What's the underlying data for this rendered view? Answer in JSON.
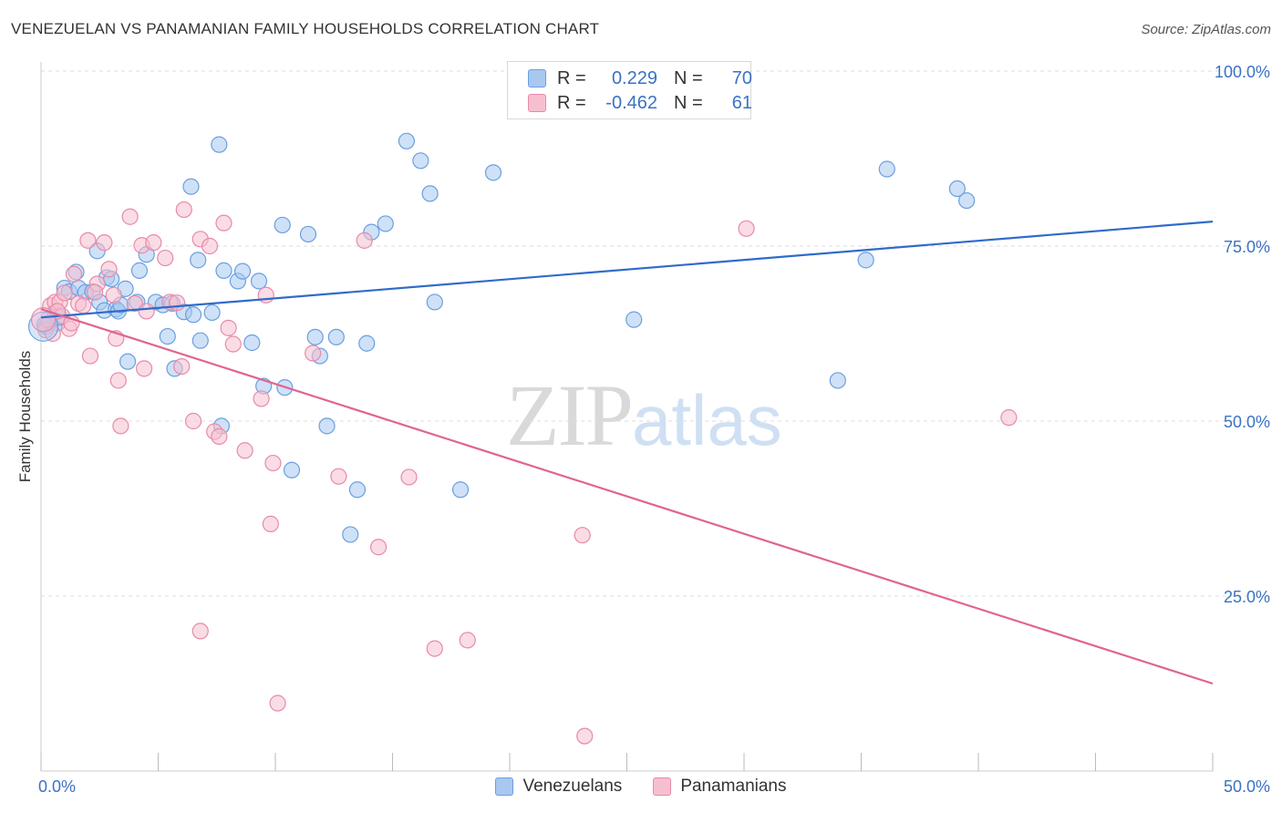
{
  "title": "VENEZUELAN VS PANAMANIAN FAMILY HOUSEHOLDS CORRELATION CHART",
  "source": "Source: ZipAtlas.com",
  "watermark": {
    "zip": "ZIP",
    "atlas": "atlas"
  },
  "legend": {
    "rows": [
      {
        "r_label": "R =",
        "r_value": "0.229",
        "n_label": "N =",
        "n_value": "70",
        "color": "#a8c8f0",
        "stroke": "#6a9fe0"
      },
      {
        "r_label": "R =",
        "r_value": "-0.462",
        "n_label": "N =",
        "n_value": "61",
        "color": "#f6bfd0",
        "stroke": "#e88aa8"
      }
    ]
  },
  "bottom_legend": [
    {
      "label": "Venezuelans",
      "color": "#a8c8f0",
      "stroke": "#6a9fe0"
    },
    {
      "label": "Panamanians",
      "color": "#f6bfd0",
      "stroke": "#e88aa8"
    }
  ],
  "chart_data": {
    "type": "scatter",
    "ylabel": "Family Households",
    "xlabel": "",
    "xlim": [
      0,
      50
    ],
    "ylim": [
      0,
      100
    ],
    "x_tick_labels": [
      "0.0%",
      "50.0%"
    ],
    "y_tick_labels": [
      "100.0%",
      "75.0%",
      "50.0%",
      "25.0%"
    ],
    "y_tick_values": [
      100,
      75,
      50,
      25
    ],
    "grid": true,
    "series": [
      {
        "name": "Venezuelans",
        "color": "#6a9fe0",
        "fill": "#a8c8f0",
        "trend": {
          "x": [
            0,
            50
          ],
          "y": [
            64.8,
            78.5
          ]
        },
        "points": [
          [
            0.2,
            63.5
          ],
          [
            0.4,
            64.2
          ],
          [
            0.6,
            65.5
          ],
          [
            0.7,
            64.0
          ],
          [
            0.8,
            64.8
          ],
          [
            1.0,
            69.0
          ],
          [
            1.2,
            68.5
          ],
          [
            1.5,
            71.3
          ],
          [
            1.6,
            69.0
          ],
          [
            1.9,
            68.4
          ],
          [
            2.2,
            68.5
          ],
          [
            2.4,
            74.3
          ],
          [
            2.5,
            67.0
          ],
          [
            2.7,
            65.8
          ],
          [
            2.8,
            70.5
          ],
          [
            3.0,
            70.3
          ],
          [
            3.2,
            66.0
          ],
          [
            3.3,
            65.7
          ],
          [
            3.4,
            66.6
          ],
          [
            3.6,
            68.9
          ],
          [
            3.7,
            58.5
          ],
          [
            4.1,
            67.0
          ],
          [
            4.2,
            71.5
          ],
          [
            4.5,
            73.8
          ],
          [
            4.9,
            67.0
          ],
          [
            5.2,
            66.6
          ],
          [
            5.4,
            62.1
          ],
          [
            5.6,
            66.8
          ],
          [
            5.7,
            57.5
          ],
          [
            6.1,
            65.6
          ],
          [
            6.4,
            83.5
          ],
          [
            6.5,
            65.2
          ],
          [
            6.7,
            73.0
          ],
          [
            6.8,
            61.5
          ],
          [
            7.3,
            65.5
          ],
          [
            7.6,
            89.5
          ],
          [
            7.7,
            49.3
          ],
          [
            7.8,
            71.5
          ],
          [
            8.4,
            70.0
          ],
          [
            8.6,
            71.4
          ],
          [
            9.0,
            61.2
          ],
          [
            9.3,
            70.0
          ],
          [
            9.5,
            55.0
          ],
          [
            10.3,
            78.0
          ],
          [
            10.4,
            54.8
          ],
          [
            10.7,
            43.0
          ],
          [
            11.4,
            76.7
          ],
          [
            11.7,
            62.0
          ],
          [
            11.9,
            59.3
          ],
          [
            12.2,
            49.3
          ],
          [
            12.6,
            62.0
          ],
          [
            13.2,
            33.8
          ],
          [
            13.5,
            40.2
          ],
          [
            13.9,
            61.1
          ],
          [
            14.1,
            77.0
          ],
          [
            14.7,
            78.2
          ],
          [
            15.6,
            90.0
          ],
          [
            16.2,
            87.2
          ],
          [
            16.6,
            82.5
          ],
          [
            16.8,
            67.0
          ],
          [
            17.9,
            40.2
          ],
          [
            19.3,
            85.5
          ],
          [
            21.5,
            100.0
          ],
          [
            25.3,
            64.5
          ],
          [
            34.0,
            55.8
          ],
          [
            35.2,
            73.0
          ],
          [
            36.1,
            86.0
          ],
          [
            39.1,
            83.2
          ],
          [
            39.5,
            81.5
          ],
          [
            0.15,
            63.8
          ]
        ]
      },
      {
        "name": "Panamanians",
        "color": "#e88aa8",
        "fill": "#f6bfd0",
        "trend": {
          "x": [
            0,
            50
          ],
          "y": [
            66.0,
            12.5
          ]
        },
        "points": [
          [
            0.2,
            63.0
          ],
          [
            0.4,
            66.5
          ],
          [
            0.6,
            67.0
          ],
          [
            0.8,
            67.0
          ],
          [
            1.0,
            68.3
          ],
          [
            1.2,
            63.2
          ],
          [
            1.4,
            71.0
          ],
          [
            1.6,
            66.8
          ],
          [
            1.8,
            66.5
          ],
          [
            2.0,
            75.8
          ],
          [
            2.1,
            59.3
          ],
          [
            2.4,
            69.6
          ],
          [
            2.7,
            75.5
          ],
          [
            2.9,
            71.7
          ],
          [
            3.1,
            68.0
          ],
          [
            3.2,
            61.8
          ],
          [
            3.3,
            55.8
          ],
          [
            3.4,
            49.3
          ],
          [
            3.8,
            79.2
          ],
          [
            4.0,
            66.8
          ],
          [
            4.3,
            75.1
          ],
          [
            4.4,
            57.5
          ],
          [
            4.5,
            65.7
          ],
          [
            4.8,
            75.5
          ],
          [
            5.3,
            73.3
          ],
          [
            5.5,
            67.0
          ],
          [
            6.0,
            57.8
          ],
          [
            6.1,
            80.2
          ],
          [
            6.5,
            50.0
          ],
          [
            6.8,
            76.0
          ],
          [
            6.8,
            20.0
          ],
          [
            7.2,
            75.0
          ],
          [
            7.4,
            48.5
          ],
          [
            7.6,
            47.8
          ],
          [
            7.8,
            78.3
          ],
          [
            8.0,
            63.3
          ],
          [
            8.2,
            61.0
          ],
          [
            8.7,
            45.8
          ],
          [
            9.4,
            53.2
          ],
          [
            9.6,
            68.0
          ],
          [
            9.8,
            35.3
          ],
          [
            9.9,
            44.0
          ],
          [
            10.1,
            9.7
          ],
          [
            11.6,
            59.7
          ],
          [
            12.7,
            42.1
          ],
          [
            13.8,
            75.8
          ],
          [
            14.4,
            32.0
          ],
          [
            15.7,
            42.0
          ],
          [
            16.8,
            17.5
          ],
          [
            18.2,
            18.7
          ],
          [
            23.1,
            33.7
          ],
          [
            23.2,
            5.0
          ],
          [
            30.1,
            77.5
          ],
          [
            41.3,
            50.5
          ],
          [
            0.3,
            64.5
          ],
          [
            0.9,
            65.0
          ],
          [
            1.3,
            64.0
          ],
          [
            0.5,
            62.5
          ],
          [
            2.3,
            68.4
          ],
          [
            5.8,
            66.9
          ],
          [
            0.7,
            65.7
          ]
        ]
      }
    ]
  }
}
